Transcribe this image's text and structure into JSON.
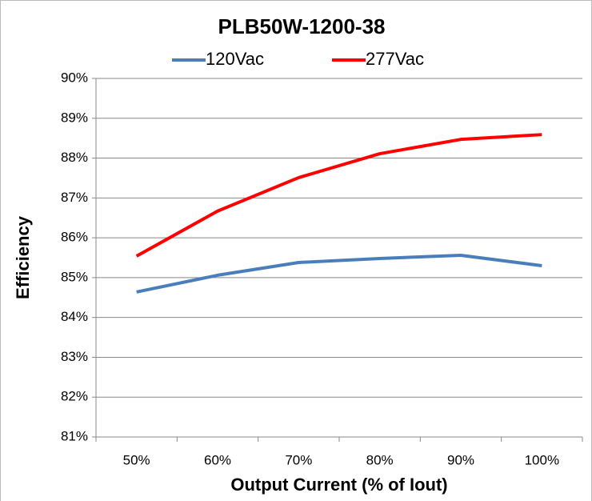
{
  "chart_data": {
    "type": "line",
    "title": "PLB50W-1200-38",
    "x_label": "Output Current (% of Iout)",
    "y_label": "Efficiency",
    "categories": [
      "50%",
      "60%",
      "70%",
      "80%",
      "90%",
      "100%"
    ],
    "series": [
      {
        "name": "120Vac",
        "color": "#4a7ebb",
        "values": [
          84.64,
          85.06,
          85.38,
          85.48,
          85.56,
          85.3
        ]
      },
      {
        "name": "277Vac",
        "color": "#ff0000",
        "values": [
          85.54,
          86.67,
          87.51,
          88.11,
          88.47,
          88.59
        ]
      }
    ],
    "ylim": [
      81,
      90
    ],
    "yticks": [
      {
        "value": 81,
        "label": "81%"
      },
      {
        "value": 82,
        "label": "82%"
      },
      {
        "value": 83,
        "label": "83%"
      },
      {
        "value": 84,
        "label": "84%"
      },
      {
        "value": 85,
        "label": "85%"
      },
      {
        "value": 86,
        "label": "86%"
      },
      {
        "value": 87,
        "label": "87%"
      },
      {
        "value": 88,
        "label": "88%"
      },
      {
        "value": 89,
        "label": "89%"
      },
      {
        "value": 90,
        "label": "90%"
      }
    ],
    "grid": true,
    "legend": "top"
  }
}
